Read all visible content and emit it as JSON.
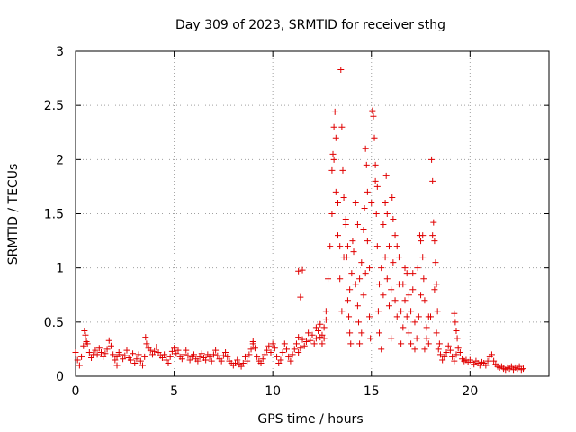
{
  "chart_data": {
    "type": "scatter",
    "title": "Day 309 of 2023, SRMTID for receiver sthg",
    "xlabel": "GPS time / hours",
    "ylabel": "SRMTID / TECUs",
    "xlim": [
      0,
      24
    ],
    "ylim": [
      0,
      3
    ],
    "xticks": [
      0,
      5,
      10,
      15,
      20
    ],
    "xtick_labels": [
      "0",
      "5",
      "10",
      "15",
      "20"
    ],
    "yticks": [
      0,
      0.5,
      1,
      1.5,
      2,
      2.5,
      3
    ],
    "ytick_labels": [
      "0",
      "0.5",
      "1",
      "1.5",
      "2",
      "2.5",
      "3"
    ],
    "grid": true,
    "marker": "+",
    "series": [
      {
        "name": "SRMTID",
        "color": "#e00000",
        "points": [
          [
            0.0,
            0.22
          ],
          [
            0.1,
            0.15
          ],
          [
            0.2,
            0.1
          ],
          [
            0.3,
            0.18
          ],
          [
            0.4,
            0.28
          ],
          [
            0.5,
            0.38
          ],
          [
            0.6,
            0.3
          ],
          [
            0.7,
            0.22
          ],
          [
            0.8,
            0.17
          ],
          [
            0.9,
            0.2
          ],
          [
            1.0,
            0.24
          ],
          [
            1.1,
            0.2
          ],
          [
            1.2,
            0.26
          ],
          [
            1.3,
            0.22
          ],
          [
            1.4,
            0.18
          ],
          [
            1.5,
            0.21
          ],
          [
            1.6,
            0.25
          ],
          [
            1.7,
            0.33
          ],
          [
            1.8,
            0.28
          ],
          [
            1.9,
            0.2
          ],
          [
            2.0,
            0.15
          ],
          [
            2.1,
            0.18
          ],
          [
            2.2,
            0.22
          ],
          [
            2.3,
            0.2
          ],
          [
            2.4,
            0.16
          ],
          [
            2.5,
            0.19
          ],
          [
            2.6,
            0.24
          ],
          [
            2.7,
            0.17
          ],
          [
            2.8,
            0.15
          ],
          [
            2.9,
            0.21
          ],
          [
            3.0,
            0.12
          ],
          [
            3.1,
            0.16
          ],
          [
            3.2,
            0.2
          ],
          [
            3.3,
            0.14
          ],
          [
            3.4,
            0.1
          ],
          [
            3.5,
            0.18
          ],
          [
            3.6,
            0.3
          ],
          [
            3.7,
            0.26
          ],
          [
            3.8,
            0.24
          ],
          [
            3.9,
            0.2
          ],
          [
            4.0,
            0.23
          ],
          [
            4.1,
            0.27
          ],
          [
            4.2,
            0.22
          ],
          [
            4.3,
            0.19
          ],
          [
            4.4,
            0.17
          ],
          [
            4.5,
            0.2
          ],
          [
            4.6,
            0.15
          ],
          [
            4.7,
            0.12
          ],
          [
            4.8,
            0.18
          ],
          [
            4.9,
            0.23
          ],
          [
            5.0,
            0.26
          ],
          [
            5.1,
            0.21
          ],
          [
            5.2,
            0.24
          ],
          [
            5.3,
            0.18
          ],
          [
            5.4,
            0.16
          ],
          [
            5.5,
            0.2
          ],
          [
            5.6,
            0.24
          ],
          [
            5.7,
            0.19
          ],
          [
            5.8,
            0.15
          ],
          [
            5.9,
            0.18
          ],
          [
            6.0,
            0.2
          ],
          [
            6.1,
            0.16
          ],
          [
            6.2,
            0.14
          ],
          [
            6.3,
            0.18
          ],
          [
            6.4,
            0.21
          ],
          [
            6.5,
            0.17
          ],
          [
            6.6,
            0.15
          ],
          [
            6.7,
            0.2
          ],
          [
            6.8,
            0.18
          ],
          [
            6.9,
            0.14
          ],
          [
            7.0,
            0.2
          ],
          [
            7.1,
            0.24
          ],
          [
            7.2,
            0.19
          ],
          [
            7.3,
            0.16
          ],
          [
            7.4,
            0.14
          ],
          [
            7.5,
            0.19
          ],
          [
            7.6,
            0.22
          ],
          [
            7.7,
            0.18
          ],
          [
            7.8,
            0.14
          ],
          [
            7.9,
            0.12
          ],
          [
            8.0,
            0.1
          ],
          [
            8.1,
            0.12
          ],
          [
            8.2,
            0.15
          ],
          [
            8.3,
            0.11
          ],
          [
            8.4,
            0.09
          ],
          [
            8.5,
            0.12
          ],
          [
            8.6,
            0.18
          ],
          [
            8.7,
            0.14
          ],
          [
            8.8,
            0.2
          ],
          [
            8.9,
            0.25
          ],
          [
            9.0,
            0.3
          ],
          [
            9.1,
            0.26
          ],
          [
            9.2,
            0.18
          ],
          [
            9.3,
            0.14
          ],
          [
            9.4,
            0.12
          ],
          [
            9.5,
            0.16
          ],
          [
            9.6,
            0.2
          ],
          [
            9.7,
            0.24
          ],
          [
            9.8,
            0.28
          ],
          [
            9.9,
            0.22
          ],
          [
            10.0,
            0.3
          ],
          [
            10.1,
            0.26
          ],
          [
            10.2,
            0.18
          ],
          [
            10.3,
            0.12
          ],
          [
            10.4,
            0.15
          ],
          [
            10.5,
            0.22
          ],
          [
            10.6,
            0.3
          ],
          [
            10.7,
            0.25
          ],
          [
            10.8,
            0.18
          ],
          [
            10.9,
            0.14
          ],
          [
            11.0,
            0.2
          ],
          [
            11.1,
            0.25
          ],
          [
            11.2,
            0.3
          ],
          [
            11.3,
            0.22
          ],
          [
            11.4,
            0.26
          ],
          [
            11.5,
            0.34
          ],
          [
            11.6,
            0.28
          ],
          [
            11.7,
            0.32
          ],
          [
            11.8,
            0.4
          ],
          [
            11.9,
            0.33
          ],
          [
            12.0,
            0.38
          ],
          [
            12.1,
            0.3
          ],
          [
            12.2,
            0.35
          ],
          [
            12.3,
            0.42
          ],
          [
            12.4,
            0.36
          ],
          [
            12.5,
            0.3
          ],
          [
            12.6,
            0.45
          ],
          [
            12.7,
            0.6
          ],
          [
            12.8,
            0.9
          ],
          [
            12.9,
            1.2
          ],
          [
            13.0,
            1.5
          ],
          [
            13.1,
            2.0
          ],
          [
            13.2,
            1.7
          ],
          [
            13.3,
            1.3
          ],
          [
            13.4,
            0.9
          ],
          [
            13.5,
            0.6
          ],
          [
            13.6,
            1.1
          ],
          [
            13.7,
            1.4
          ],
          [
            13.8,
            1.2
          ],
          [
            13.9,
            0.8
          ],
          [
            14.0,
            0.95
          ],
          [
            14.1,
            1.15
          ],
          [
            14.2,
            0.85
          ],
          [
            14.3,
            0.65
          ],
          [
            14.4,
            0.9
          ],
          [
            14.5,
            1.05
          ],
          [
            14.6,
            0.75
          ],
          [
            14.7,
            0.95
          ],
          [
            14.8,
            1.25
          ],
          [
            14.9,
            1.0
          ],
          [
            15.0,
            1.6
          ],
          [
            15.1,
            2.4
          ],
          [
            15.2,
            1.8
          ],
          [
            15.3,
            1.2
          ],
          [
            15.4,
            0.85
          ],
          [
            15.5,
            1.0
          ],
          [
            15.6,
            0.75
          ],
          [
            15.7,
            1.1
          ],
          [
            15.8,
            0.9
          ],
          [
            15.9,
            0.65
          ],
          [
            16.0,
            0.8
          ],
          [
            16.1,
            1.05
          ],
          [
            16.2,
            0.7
          ],
          [
            16.3,
            0.55
          ],
          [
            16.4,
            0.85
          ],
          [
            16.5,
            0.6
          ],
          [
            16.6,
            0.45
          ],
          [
            16.7,
            0.7
          ],
          [
            16.8,
            0.55
          ],
          [
            16.9,
            0.4
          ],
          [
            17.0,
            0.6
          ],
          [
            17.1,
            0.8
          ],
          [
            17.2,
            0.5
          ],
          [
            17.3,
            0.35
          ],
          [
            17.4,
            0.55
          ],
          [
            17.5,
            0.75
          ],
          [
            17.6,
            1.1
          ],
          [
            17.7,
            0.7
          ],
          [
            17.8,
            0.45
          ],
          [
            17.9,
            0.3
          ],
          [
            18.0,
            0.55
          ],
          [
            18.1,
            1.3
          ],
          [
            18.2,
            0.8
          ],
          [
            18.3,
            0.4
          ],
          [
            18.4,
            0.25
          ],
          [
            18.5,
            0.2
          ],
          [
            18.6,
            0.15
          ],
          [
            18.7,
            0.18
          ],
          [
            18.8,
            0.22
          ],
          [
            18.9,
            0.28
          ],
          [
            19.0,
            0.24
          ],
          [
            19.1,
            0.18
          ],
          [
            19.2,
            0.14
          ],
          [
            19.3,
            0.2
          ],
          [
            19.4,
            0.26
          ],
          [
            19.5,
            0.22
          ],
          [
            19.6,
            0.16
          ],
          [
            19.7,
            0.14
          ],
          [
            19.8,
            0.15
          ],
          [
            19.9,
            0.13
          ],
          [
            20.0,
            0.15
          ],
          [
            20.1,
            0.13
          ],
          [
            20.2,
            0.11
          ],
          [
            20.3,
            0.14
          ],
          [
            20.4,
            0.12
          ],
          [
            20.5,
            0.1
          ],
          [
            20.6,
            0.13
          ],
          [
            20.7,
            0.12
          ],
          [
            20.8,
            0.1
          ],
          [
            20.9,
            0.14
          ],
          [
            21.0,
            0.18
          ],
          [
            21.1,
            0.2
          ],
          [
            21.2,
            0.14
          ],
          [
            21.3,
            0.11
          ],
          [
            21.4,
            0.09
          ],
          [
            21.5,
            0.08
          ],
          [
            21.6,
            0.09
          ],
          [
            21.7,
            0.07
          ],
          [
            21.8,
            0.06
          ],
          [
            21.9,
            0.08
          ],
          [
            22.0,
            0.07
          ],
          [
            22.1,
            0.09
          ],
          [
            22.2,
            0.06
          ],
          [
            22.3,
            0.08
          ],
          [
            22.4,
            0.07
          ],
          [
            22.5,
            0.09
          ],
          [
            22.6,
            0.06
          ],
          [
            22.7,
            0.07
          ],
          [
            0.45,
            0.42
          ],
          [
            0.55,
            0.32
          ],
          [
            2.1,
            0.1
          ],
          [
            3.55,
            0.36
          ],
          [
            9.0,
            0.32
          ],
          [
            11.3,
            0.36
          ],
          [
            12.2,
            0.45
          ],
          [
            12.4,
            0.48
          ],
          [
            12.5,
            0.38
          ],
          [
            11.3,
            0.97
          ],
          [
            11.4,
            0.73
          ],
          [
            11.5,
            0.98
          ],
          [
            12.6,
            0.35
          ],
          [
            12.7,
            0.52
          ],
          [
            13.0,
            1.9
          ],
          [
            13.05,
            2.05
          ],
          [
            13.1,
            2.3
          ],
          [
            13.15,
            2.44
          ],
          [
            13.2,
            2.2
          ],
          [
            13.3,
            1.6
          ],
          [
            13.4,
            1.2
          ],
          [
            13.45,
            2.83
          ],
          [
            13.5,
            2.3
          ],
          [
            13.55,
            1.9
          ],
          [
            13.6,
            1.65
          ],
          [
            13.7,
            1.45
          ],
          [
            13.75,
            1.1
          ],
          [
            13.8,
            0.7
          ],
          [
            13.85,
            0.55
          ],
          [
            13.9,
            0.4
          ],
          [
            13.95,
            0.3
          ],
          [
            14.05,
            1.25
          ],
          [
            14.2,
            1.6
          ],
          [
            14.3,
            1.4
          ],
          [
            14.35,
            0.5
          ],
          [
            14.4,
            0.3
          ],
          [
            14.5,
            0.4
          ],
          [
            14.6,
            1.35
          ],
          [
            14.65,
            1.55
          ],
          [
            14.7,
            2.1
          ],
          [
            14.75,
            1.95
          ],
          [
            14.8,
            1.7
          ],
          [
            14.9,
            0.55
          ],
          [
            14.95,
            0.35
          ],
          [
            15.05,
            2.45
          ],
          [
            15.15,
            2.2
          ],
          [
            15.2,
            1.95
          ],
          [
            15.25,
            1.5
          ],
          [
            15.3,
            1.75
          ],
          [
            15.35,
            0.6
          ],
          [
            15.4,
            0.4
          ],
          [
            15.5,
            0.25
          ],
          [
            15.6,
            1.4
          ],
          [
            15.7,
            1.6
          ],
          [
            15.75,
            1.85
          ],
          [
            15.8,
            1.5
          ],
          [
            15.9,
            1.2
          ],
          [
            16.0,
            0.35
          ],
          [
            16.05,
            1.65
          ],
          [
            16.1,
            1.45
          ],
          [
            16.2,
            1.3
          ],
          [
            16.3,
            1.2
          ],
          [
            16.4,
            1.1
          ],
          [
            16.5,
            0.3
          ],
          [
            16.6,
            0.85
          ],
          [
            16.7,
            1.0
          ],
          [
            16.8,
            0.95
          ],
          [
            16.9,
            0.75
          ],
          [
            17.0,
            0.3
          ],
          [
            17.1,
            0.95
          ],
          [
            17.2,
            0.25
          ],
          [
            17.35,
            1.0
          ],
          [
            17.45,
            1.3
          ],
          [
            17.5,
            1.25
          ],
          [
            17.6,
            1.3
          ],
          [
            17.65,
            0.9
          ],
          [
            17.7,
            0.25
          ],
          [
            17.8,
            0.35
          ],
          [
            17.9,
            0.55
          ],
          [
            18.05,
            2.0
          ],
          [
            18.1,
            1.8
          ],
          [
            18.15,
            1.42
          ],
          [
            18.2,
            1.25
          ],
          [
            18.25,
            1.05
          ],
          [
            18.3,
            0.85
          ],
          [
            18.35,
            0.6
          ],
          [
            18.45,
            0.3
          ],
          [
            19.2,
            0.58
          ],
          [
            19.25,
            0.5
          ],
          [
            19.3,
            0.42
          ],
          [
            19.35,
            0.35
          ]
        ]
      }
    ]
  }
}
